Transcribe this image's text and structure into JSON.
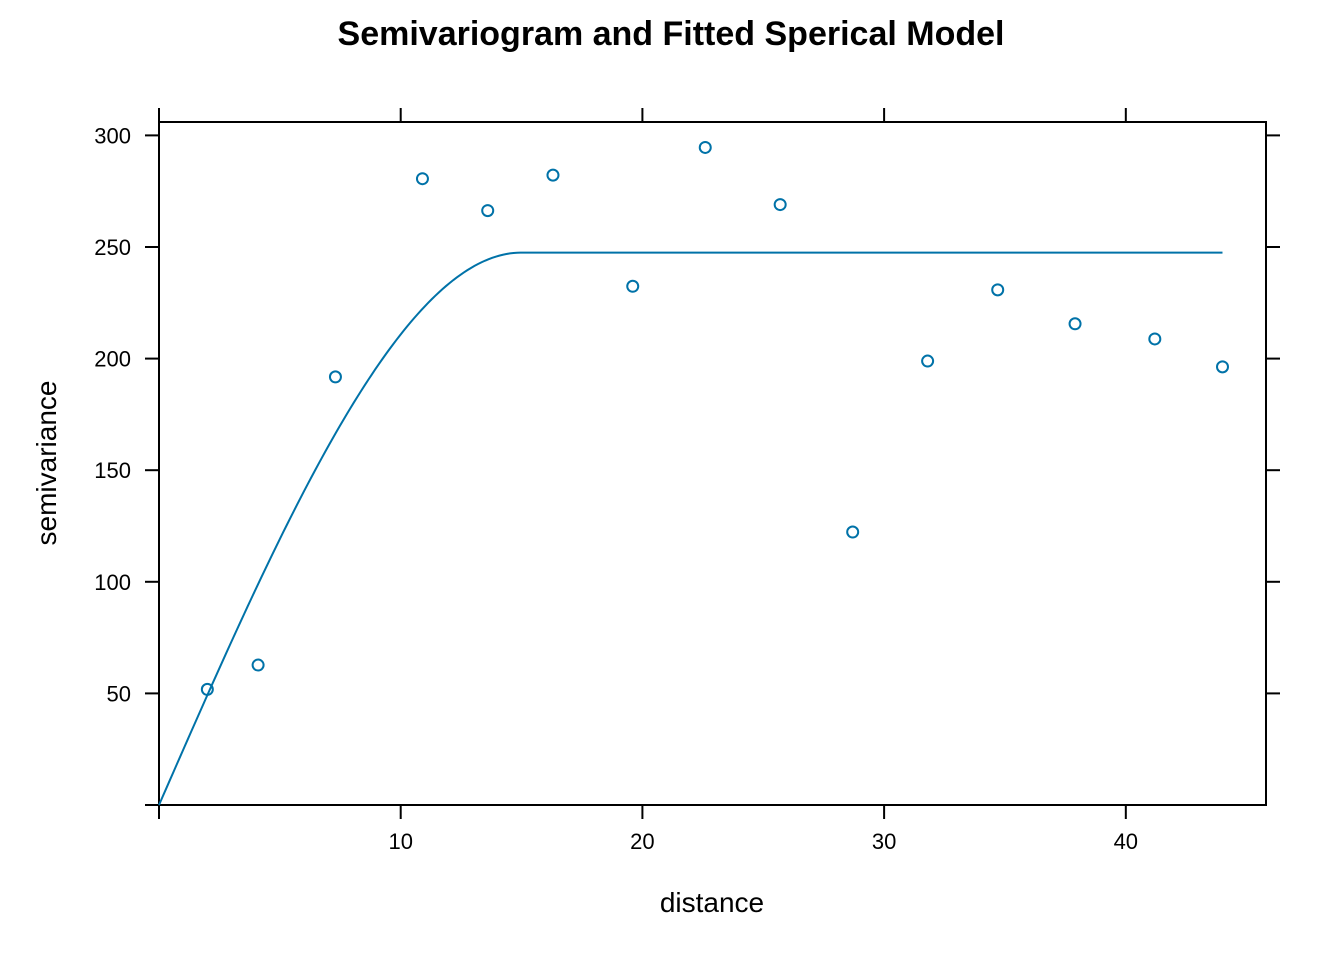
{
  "chart_data": {
    "type": "scatter",
    "title": "Semivariogram and Fitted Sperical Model",
    "xlabel": "distance",
    "ylabel": "semivariance",
    "xlim": [
      0,
      45.8
    ],
    "ylim": [
      0,
      306
    ],
    "x_ticks": [
      10,
      20,
      30,
      40
    ],
    "y_ticks": [
      50,
      100,
      150,
      200,
      250,
      300
    ],
    "x_tick_labels": [
      "10",
      "20",
      "30",
      "40"
    ],
    "y_tick_labels": [
      "50",
      "100",
      "150",
      "200",
      "250",
      "300"
    ],
    "grid": false,
    "legend": "none",
    "color": "#0072A8",
    "series": [
      {
        "kind": "points",
        "x": [
          2.0,
          4.1,
          7.3,
          10.9,
          13.6,
          16.3,
          19.6,
          22.6,
          25.7,
          28.7,
          31.8,
          34.7,
          37.9,
          41.2,
          44.0
        ],
        "y": [
          51.8,
          62.7,
          191.8,
          280.6,
          266.3,
          282.2,
          232.4,
          294.6,
          269.0,
          122.3,
          198.9,
          230.8,
          215.6,
          208.8,
          196.3
        ]
      },
      {
        "kind": "line",
        "model": "spherical",
        "nugget": 0,
        "sill": 247.5,
        "range": 15.0,
        "x_max": 44.0
      }
    ]
  }
}
